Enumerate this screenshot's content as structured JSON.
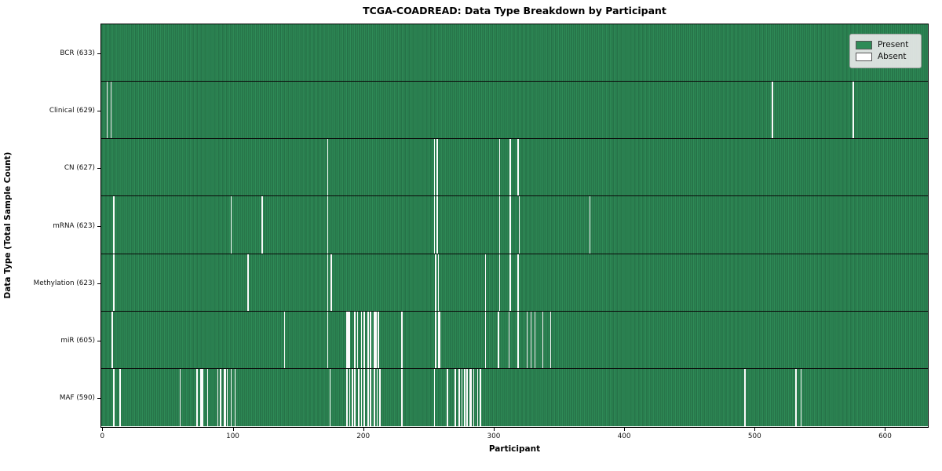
{
  "chart_data": {
    "type": "heatmap",
    "title": "TCGA-COADREAD: Data Type Breakdown by Participant",
    "xlabel": "Participant",
    "ylabel": "Data Type (Total Sample Count)",
    "n_participants": 633,
    "x_ticks": [
      0,
      100,
      200,
      300,
      400,
      500,
      600
    ],
    "grid": false,
    "legend_position": "upper right",
    "colors": {
      "present": "#2e8b57",
      "present_edge": "#1d5737",
      "absent": "#ffffff"
    },
    "legend": [
      {
        "label": "Present",
        "color": "#2e8b57"
      },
      {
        "label": "Absent",
        "color": "#ffffff"
      }
    ],
    "rows": [
      {
        "name": "BCR",
        "count": 633,
        "label": "BCR (633)",
        "absent": []
      },
      {
        "name": "Clinical",
        "count": 629,
        "label": "Clinical (629)",
        "absent": [
          4,
          7,
          514,
          576
        ]
      },
      {
        "name": "CN",
        "count": 627,
        "label": "CN (627)",
        "absent": [
          173,
          255,
          257,
          305,
          313,
          319
        ]
      },
      {
        "name": "mRNA",
        "count": 623,
        "label": "mRNA (623)",
        "absent": [
          9,
          99,
          123,
          173,
          255,
          257,
          305,
          313,
          320,
          374
        ]
      },
      {
        "name": "Methylation",
        "count": 623,
        "label": "Methylation (623)",
        "absent": [
          9,
          112,
          173,
          176,
          256,
          258,
          294,
          305,
          313,
          319
        ]
      },
      {
        "name": "miR",
        "count": 605,
        "label": "miR (605)",
        "absent": [
          8,
          140,
          173,
          188,
          189,
          190,
          194,
          196,
          199,
          201,
          204,
          206,
          209,
          210,
          212,
          230,
          256,
          258,
          259,
          294,
          304,
          312,
          319,
          326,
          329,
          332,
          338,
          344
        ]
      },
      {
        "name": "MAF",
        "count": 590,
        "label": "MAF (590)",
        "absent": [
          9,
          14,
          60,
          73,
          76,
          77,
          81,
          89,
          91,
          94,
          95,
          96,
          99,
          102,
          175,
          188,
          190,
          192,
          194,
          197,
          199,
          201,
          204,
          206,
          209,
          211,
          213,
          230,
          255,
          265,
          271,
          274,
          276,
          278,
          280,
          282,
          283,
          285,
          288,
          290,
          493,
          532,
          536
        ]
      }
    ]
  }
}
